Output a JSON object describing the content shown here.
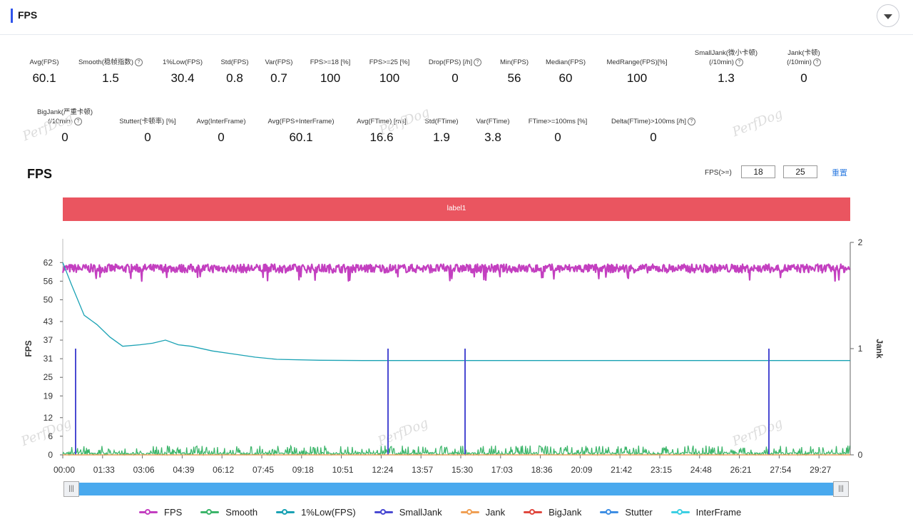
{
  "panel": {
    "title": "FPS"
  },
  "metrics_row1": [
    {
      "label": "Avg(FPS)",
      "value": "60.1",
      "help": false
    },
    {
      "label": "Smooth(稳帧指数)",
      "value": "1.5",
      "help": true
    },
    {
      "label": "1%Low(FPS)",
      "value": "30.4",
      "help": false
    },
    {
      "label": "Std(FPS)",
      "value": "0.8",
      "help": false
    },
    {
      "label": "Var(FPS)",
      "value": "0.7",
      "help": false
    },
    {
      "label": "FPS>=18 [%]",
      "value": "100",
      "help": false
    },
    {
      "label": "FPS>=25 [%]",
      "value": "100",
      "help": false
    },
    {
      "label": "Drop(FPS) [/h]",
      "value": "0",
      "help": true
    },
    {
      "label": "Min(FPS)",
      "value": "56",
      "help": false
    },
    {
      "label": "Median(FPS)",
      "value": "60",
      "help": false
    },
    {
      "label": "MedRange(FPS)[%]",
      "value": "100",
      "help": false
    },
    {
      "label": "SmallJank(微小卡顿)\n(/10min)",
      "value": "1.3",
      "help": true
    },
    {
      "label": "Jank(卡顿)\n(/10min)",
      "value": "0",
      "help": true
    }
  ],
  "metrics_row2": [
    {
      "label": "BigJank(严重卡顿)\n(/10min)",
      "value": "0",
      "help": true
    },
    {
      "label": "Stutter(卡顿率) [%]",
      "value": "0",
      "help": false
    },
    {
      "label": "Avg(InterFrame)",
      "value": "0",
      "help": false
    },
    {
      "label": "Avg(FPS+InterFrame)",
      "value": "60.1",
      "help": false
    },
    {
      "label": "Avg(FTime) [ms]",
      "value": "16.6",
      "help": false
    },
    {
      "label": "Std(FTime)",
      "value": "1.9",
      "help": false
    },
    {
      "label": "Var(FTime)",
      "value": "3.8",
      "help": false
    },
    {
      "label": "FTime>=100ms [%]",
      "value": "0",
      "help": false
    },
    {
      "label": "Delta(FTime)>100ms [/h]",
      "value": "0",
      "help": true
    }
  ],
  "watermark": "PerfDog",
  "chart_header": {
    "title": "FPS",
    "threshold_label": "FPS(>=)",
    "threshold_1": "18",
    "threshold_2": "25",
    "reset_label": "重置"
  },
  "label_bar": {
    "text": "label1",
    "color": "#ea5560"
  },
  "colors": {
    "fps": "#c33fc0",
    "smooth": "#3cb56a",
    "low1": "#1aa2b4",
    "smalljank": "#4a4ad2",
    "jank": "#f0a054",
    "bigjank": "#e0483f",
    "stutter": "#3f8ee3",
    "interframe": "#3ccfe3"
  },
  "legend": [
    "FPS",
    "Smooth",
    "1%Low(FPS)",
    "SmallJank",
    "Jank",
    "BigJank",
    "Stutter",
    "InterFrame"
  ],
  "chart_data": {
    "type": "line",
    "title": "FPS",
    "ylabel": "FPS",
    "y2label": "Jank",
    "y_ticks": [
      0,
      6,
      12,
      19,
      25,
      31,
      37,
      43,
      50,
      56,
      62
    ],
    "ylim": [
      0,
      68.5
    ],
    "y2_ticks": [
      0,
      1,
      2
    ],
    "y2lim": [
      0,
      2
    ],
    "x_ticks": [
      "00:00",
      "01:33",
      "03:06",
      "04:39",
      "06:12",
      "07:45",
      "09:18",
      "10:51",
      "12:24",
      "13:57",
      "15:30",
      "17:03",
      "18:36",
      "20:09",
      "21:42",
      "23:15",
      "24:48",
      "26:21",
      "27:54",
      "29:27"
    ],
    "x_range_seconds": [
      0,
      1840
    ],
    "grid": false,
    "legend_position": "bottom",
    "series": [
      {
        "name": "FPS",
        "summary": {
          "avg": 60.1,
          "min": 56,
          "max": 62
        }
      },
      {
        "name": "Smooth",
        "summary": {
          "typical_range": [
            0,
            3
          ]
        }
      },
      {
        "name": "1%Low(FPS)",
        "points": [
          [
            0,
            62
          ],
          [
            20,
            55
          ],
          [
            50,
            45
          ],
          [
            80,
            42
          ],
          [
            110,
            38
          ],
          [
            140,
            35
          ],
          [
            180,
            35.5
          ],
          [
            210,
            36
          ],
          [
            240,
            37
          ],
          [
            270,
            35.5
          ],
          [
            300,
            35
          ],
          [
            350,
            33.5
          ],
          [
            400,
            32.5
          ],
          [
            450,
            31.5
          ],
          [
            500,
            30.8
          ],
          [
            600,
            30.5
          ],
          [
            700,
            30.4
          ],
          [
            1840,
            30.4
          ]
        ]
      },
      {
        "name": "SmallJank",
        "events_seconds": [
          30,
          760,
          940,
          1650
        ],
        "value": 1
      },
      {
        "name": "Jank",
        "events_seconds": []
      },
      {
        "name": "BigJank",
        "events_seconds": []
      },
      {
        "name": "Stutter",
        "events_seconds": []
      },
      {
        "name": "InterFrame",
        "value": 0
      }
    ]
  }
}
